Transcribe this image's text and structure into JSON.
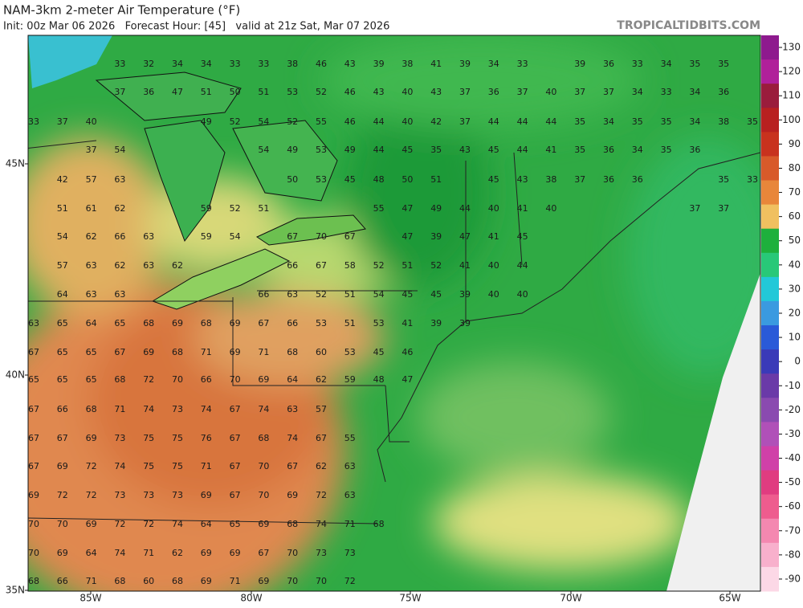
{
  "header": {
    "title": "NAM-3km 2-meter Air Temperature (°F)",
    "subtitle": "Init: 00z Mar 06 2026   Forecast Hour: [45]   valid at 21z Sat, Mar 07 2026",
    "brand": "TROPICALTIDBITS.COM"
  },
  "map": {
    "lat_labels": [
      "45N",
      "40N",
      "35N"
    ],
    "lon_labels": [
      "85W",
      "80W",
      "75W",
      "70W",
      "65W"
    ],
    "station_values": [
      [
        null,
        null,
        null,
        33,
        32,
        34,
        34,
        33,
        33,
        38,
        46,
        43,
        39,
        38,
        41,
        39,
        34,
        33,
        null,
        39,
        36,
        33,
        34,
        35,
        35
      ],
      [
        null,
        null,
        null,
        37,
        36,
        47,
        51,
        50,
        51,
        53,
        52,
        46,
        43,
        40,
        43,
        37,
        36,
        37,
        40,
        37,
        37,
        34,
        33,
        34,
        36
      ],
      [
        33,
        37,
        40,
        null,
        null,
        null,
        49,
        52,
        54,
        52,
        55,
        46,
        44,
        40,
        42,
        37,
        44,
        44,
        44,
        35,
        34,
        35,
        35,
        34,
        38,
        35
      ],
      [
        null,
        null,
        37,
        54,
        null,
        null,
        null,
        null,
        54,
        49,
        53,
        49,
        44,
        45,
        35,
        43,
        45,
        44,
        41,
        35,
        36,
        34,
        35,
        36
      ],
      [
        null,
        42,
        57,
        63,
        null,
        null,
        null,
        null,
        null,
        50,
        53,
        45,
        48,
        50,
        51,
        null,
        45,
        43,
        38,
        37,
        36,
        36,
        null,
        null,
        35,
        33
      ],
      [
        null,
        51,
        61,
        62,
        null,
        null,
        59,
        52,
        51,
        null,
        null,
        null,
        55,
        47,
        49,
        44,
        40,
        41,
        40,
        null,
        null,
        null,
        null,
        37,
        37
      ],
      [
        null,
        54,
        62,
        66,
        63,
        null,
        59,
        54,
        null,
        67,
        70,
        67,
        null,
        47,
        39,
        47,
        41,
        45
      ],
      [
        null,
        57,
        63,
        62,
        63,
        62,
        null,
        null,
        null,
        66,
        67,
        58,
        52,
        51,
        52,
        41,
        40,
        44
      ],
      [
        null,
        64,
        63,
        63,
        null,
        null,
        null,
        null,
        66,
        63,
        52,
        51,
        54,
        45,
        45,
        39,
        40,
        40
      ],
      [
        63,
        65,
        64,
        65,
        68,
        69,
        68,
        69,
        67,
        66,
        53,
        51,
        53,
        41,
        39,
        39
      ],
      [
        67,
        65,
        65,
        67,
        69,
        68,
        71,
        69,
        71,
        68,
        60,
        53,
        45,
        46
      ],
      [
        65,
        65,
        65,
        68,
        72,
        70,
        66,
        70,
        69,
        64,
        62,
        59,
        48,
        47
      ],
      [
        67,
        66,
        68,
        71,
        74,
        73,
        74,
        67,
        74,
        63,
        57
      ],
      [
        67,
        67,
        69,
        73,
        75,
        75,
        76,
        67,
        68,
        74,
        67,
        55
      ],
      [
        67,
        69,
        72,
        74,
        75,
        75,
        71,
        67,
        70,
        67,
        62,
        63
      ],
      [
        69,
        72,
        72,
        73,
        73,
        73,
        69,
        67,
        70,
        69,
        72,
        63
      ],
      [
        70,
        70,
        69,
        72,
        72,
        74,
        64,
        65,
        69,
        68,
        74,
        71,
        68
      ],
      [
        70,
        69,
        64,
        74,
        71,
        62,
        69,
        69,
        67,
        70,
        73,
        73
      ],
      [
        68,
        66,
        71,
        68,
        60,
        68,
        69,
        71,
        69,
        70,
        70,
        72
      ]
    ]
  },
  "colorbar": {
    "ticks": [
      130,
      120,
      110,
      100,
      90,
      80,
      70,
      60,
      50,
      40,
      30,
      20,
      10,
      0,
      -10,
      -20,
      -30,
      -40,
      -50,
      -60,
      -70,
      -80,
      -90
    ],
    "colors": [
      "#8e1a8e",
      "#b0209a",
      "#9a1c3c",
      "#b82020",
      "#c8321e",
      "#d85a2a",
      "#e8863a",
      "#f0c060",
      "#1eb03c",
      "#28c878",
      "#22c8d8",
      "#3a9ae0",
      "#2a5ad8",
      "#3a3ab8",
      "#6a3aa8",
      "#8a4ab0",
      "#b050b8",
      "#d040a8",
      "#e03c80",
      "#ee5c8e",
      "#f488b0",
      "#f8b0cc",
      "#fcd8e6"
    ]
  }
}
